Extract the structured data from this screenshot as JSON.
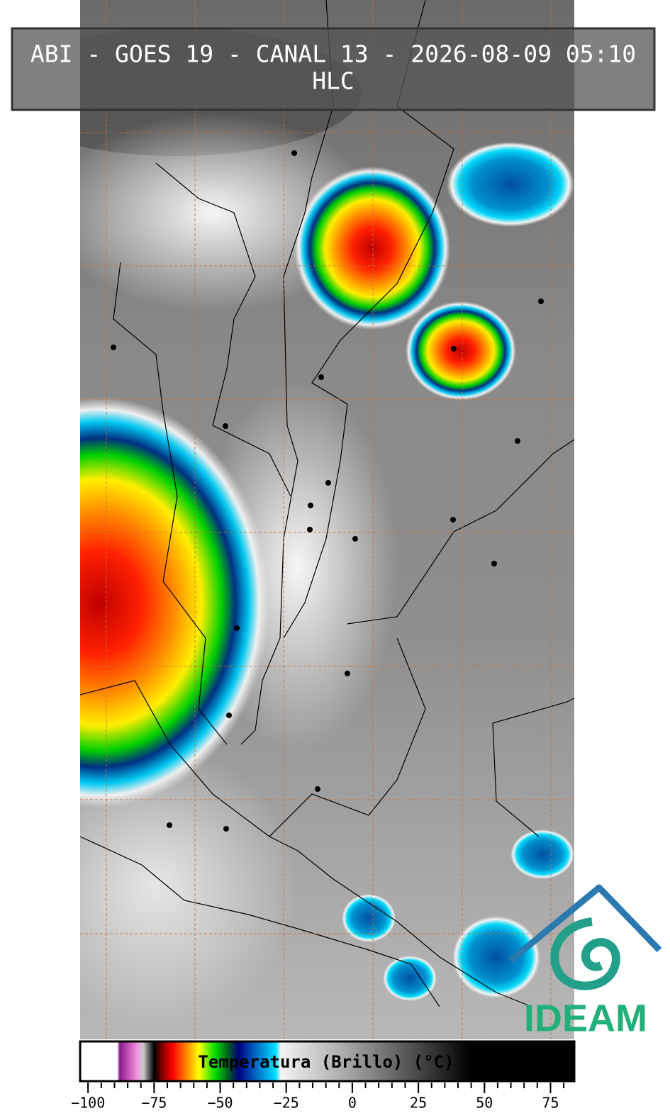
{
  "title": {
    "line1": "ABI - GOES 19 - CANAL 13 - 2026-08-09 05:10",
    "line2": "HLC"
  },
  "colorbar": {
    "label": "Temperatura (Brillo) (°C)",
    "lim": [
      -103,
      84
    ],
    "ticks": [
      {
        "value": -100,
        "label": "−100"
      },
      {
        "value": -75,
        "label": "−75"
      },
      {
        "value": -50,
        "label": "−50"
      },
      {
        "value": -25,
        "label": "−25"
      },
      0,
      25,
      50,
      75
    ],
    "minor_tick_step": 5,
    "stops": [
      {
        "value": -103,
        "color": "#ffffff"
      },
      {
        "value": -89,
        "color": "#ffffff"
      },
      {
        "value": -88,
        "color": "#8b1a8b"
      },
      {
        "value": -84,
        "color": "#d060c0"
      },
      {
        "value": -81,
        "color": "#f0a0e0"
      },
      {
        "value": -79,
        "color": "#c8c8c8"
      },
      {
        "value": -77,
        "color": "#606060"
      },
      {
        "value": -75,
        "color": "#000000"
      },
      {
        "value": -72,
        "color": "#800000"
      },
      {
        "value": -68,
        "color": "#ff0000"
      },
      {
        "value": -63,
        "color": "#ff8000"
      },
      {
        "value": -58,
        "color": "#ffff00"
      },
      {
        "value": -52,
        "color": "#00e000"
      },
      {
        "value": -47,
        "color": "#006020"
      },
      {
        "value": -43,
        "color": "#000080"
      },
      {
        "value": -37,
        "color": "#0060c0"
      },
      {
        "value": -29,
        "color": "#00e0ff"
      },
      {
        "value": -27,
        "color": "#f4f4f4"
      },
      {
        "value": 0,
        "color": "#a0a0a0"
      },
      {
        "value": 45,
        "color": "#000000"
      },
      {
        "value": 84,
        "color": "#000000"
      }
    ]
  },
  "logo": {
    "text": "IDEAM"
  }
}
